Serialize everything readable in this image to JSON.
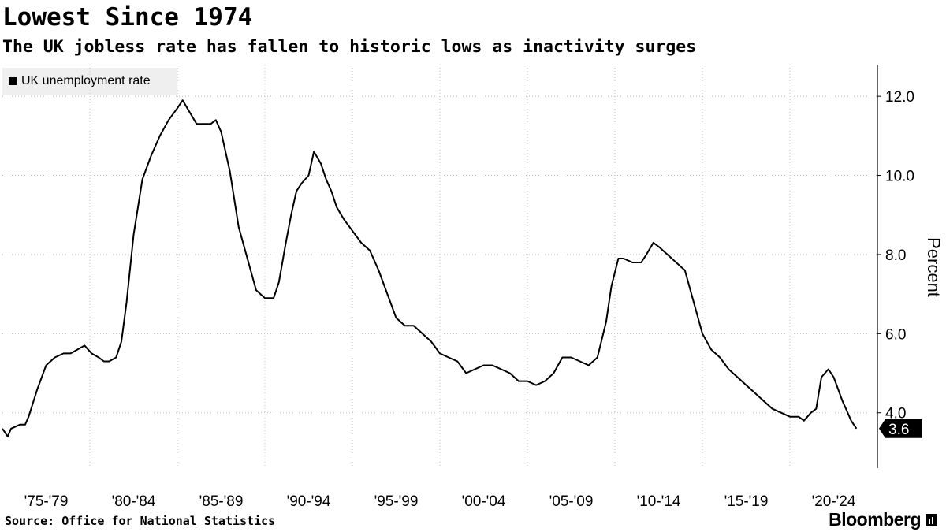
{
  "header": {
    "title": "Lowest Since 1974",
    "subtitle": "The UK jobless rate has fallen to historic lows as inactivity surges"
  },
  "legend": {
    "label": "UK unemployment rate"
  },
  "footer": {
    "source": "Source: Office for National Statistics",
    "brand": "Bloomberg"
  },
  "colors": {
    "line": "#000000",
    "grid": "#bbbbbb",
    "legend_bg": "#efefef",
    "badge_bg": "#000000",
    "badge_text": "#ffffff"
  },
  "chart_data": {
    "type": "line",
    "title": "Lowest Since 1974",
    "ylabel": "Percent",
    "xlim": [
      1974.5,
      2024.5
    ],
    "ylim": [
      2.6,
      12.8
    ],
    "yticks": [
      4.0,
      6.0,
      8.0,
      10.0,
      12.0
    ],
    "ytick_labels": [
      "4.0",
      "6.0",
      "8.0",
      "10.0",
      "12.0"
    ],
    "xtick_labels": [
      "'75-'79",
      "'80-'84",
      "'85-'89",
      "'90-'94",
      "'95-'99",
      "'00-'04",
      "'05-'09",
      "'10-'14",
      "'15-'19",
      "'20-'24"
    ],
    "xtick_centers": [
      1977,
      1982,
      1987,
      1992,
      1997,
      2002,
      2007,
      2012,
      2017,
      2022
    ],
    "gridlines_x": [
      1979.5,
      1984.5,
      1989.5,
      1994.5,
      1999.5,
      2004.5,
      2009.5,
      2014.5,
      2019.5
    ],
    "grid": true,
    "legend_position": "top-left",
    "last_value_label": "3.6",
    "series": [
      {
        "name": "UK unemployment rate",
        "x": [
          1974.5,
          1974.8,
          1975.0,
          1975.5,
          1975.8,
          1976.0,
          1976.5,
          1977.0,
          1977.5,
          1978.0,
          1978.4,
          1978.8,
          1979.2,
          1979.6,
          1980.0,
          1980.3,
          1980.6,
          1981.0,
          1981.3,
          1981.6,
          1982.0,
          1982.5,
          1983.0,
          1983.5,
          1984.0,
          1984.5,
          1984.8,
          1985.2,
          1985.6,
          1986.0,
          1986.4,
          1986.7,
          1987.0,
          1987.5,
          1988.0,
          1988.5,
          1989.0,
          1989.5,
          1990.0,
          1990.3,
          1990.7,
          1991.0,
          1991.3,
          1991.6,
          1992.0,
          1992.3,
          1992.7,
          1993.0,
          1993.3,
          1993.6,
          1994.0,
          1994.5,
          1995.0,
          1995.5,
          1996.0,
          1996.5,
          1997.0,
          1997.5,
          1998.0,
          1998.5,
          1999.0,
          1999.5,
          2000.0,
          2000.5,
          2001.0,
          2001.5,
          2002.0,
          2002.5,
          2003.0,
          2003.5,
          2004.0,
          2004.5,
          2005.0,
          2005.5,
          2006.0,
          2006.5,
          2007.0,
          2007.5,
          2008.0,
          2008.5,
          2009.0,
          2009.3,
          2009.7,
          2010.0,
          2010.5,
          2011.0,
          2011.3,
          2011.7,
          2012.0,
          2012.5,
          2013.0,
          2013.5,
          2014.0,
          2014.5,
          2015.0,
          2015.5,
          2016.0,
          2016.5,
          2017.0,
          2017.5,
          2018.0,
          2018.5,
          2019.0,
          2019.5,
          2020.0,
          2020.3,
          2020.7,
          2021.0,
          2021.3,
          2021.7,
          2022.0,
          2022.5,
          2022.8,
          2023.0,
          2023.3
        ],
        "y": [
          3.6,
          3.4,
          3.6,
          3.7,
          3.7,
          3.9,
          4.6,
          5.2,
          5.4,
          5.5,
          5.5,
          5.6,
          5.7,
          5.5,
          5.4,
          5.3,
          5.3,
          5.4,
          5.8,
          6.8,
          8.5,
          9.9,
          10.5,
          11.0,
          11.4,
          11.7,
          11.9,
          11.6,
          11.3,
          11.3,
          11.3,
          11.4,
          11.1,
          10.1,
          8.7,
          7.9,
          7.1,
          6.9,
          6.9,
          7.3,
          8.3,
          9.0,
          9.6,
          9.8,
          10.0,
          10.6,
          10.3,
          9.9,
          9.6,
          9.2,
          8.9,
          8.6,
          8.3,
          8.1,
          7.6,
          7.0,
          6.4,
          6.2,
          6.2,
          6.0,
          5.8,
          5.5,
          5.4,
          5.3,
          5.0,
          5.1,
          5.2,
          5.2,
          5.1,
          5.0,
          4.8,
          4.8,
          4.7,
          4.8,
          5.0,
          5.4,
          5.4,
          5.3,
          5.2,
          5.4,
          6.3,
          7.2,
          7.9,
          7.9,
          7.8,
          7.8,
          8.0,
          8.3,
          8.2,
          8.0,
          7.8,
          7.6,
          6.8,
          6.0,
          5.6,
          5.4,
          5.1,
          4.9,
          4.7,
          4.5,
          4.3,
          4.1,
          4.0,
          3.9,
          3.9,
          3.8,
          4.0,
          4.1,
          4.9,
          5.1,
          4.9,
          4.3,
          4.0,
          3.8,
          3.6
        ]
      }
    ]
  }
}
